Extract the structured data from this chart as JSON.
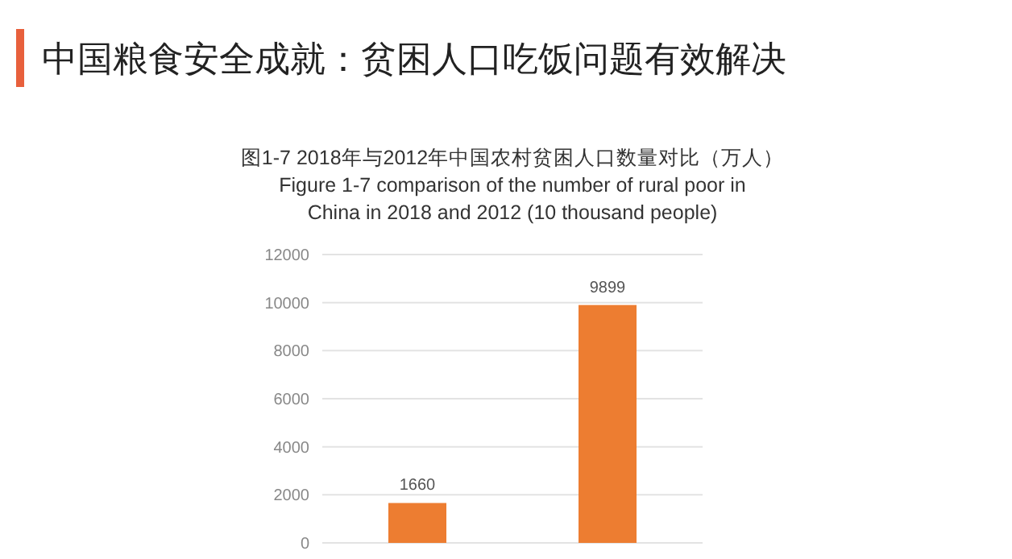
{
  "chart_data": {
    "type": "bar",
    "title": "中国粮食安全成就：贫困人口吃饭问题有效解决",
    "subtitle": "图1-7 2018年与2012年中国农村贫困人口数量对比（万人）\nFigure 1-7 comparison of the number of rural poor in\nChina in 2018 and 2012 (10 thousand people)",
    "categories": [
      null,
      null
    ],
    "values": [
      1660,
      9899
    ],
    "color": "#ed7d31",
    "ylim": [
      0,
      12000
    ],
    "yticks": [
      0,
      2000,
      4000,
      6000,
      8000,
      10000,
      12000
    ],
    "grid": "y",
    "data_labels": true
  }
}
